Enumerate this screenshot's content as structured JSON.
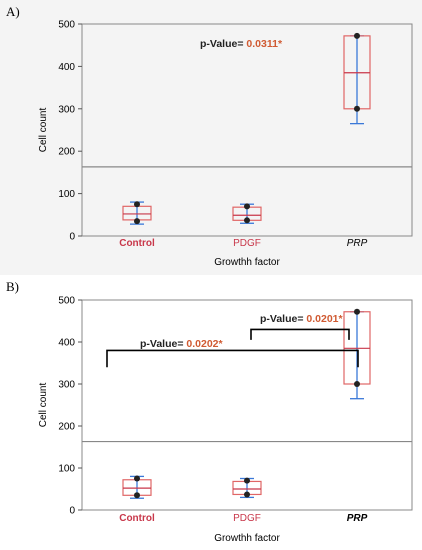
{
  "chart_data": [
    {
      "panel_label": "A)",
      "type": "box",
      "xlabel": "Growthh factor",
      "ylabel": "Cell count",
      "ylim": [
        0,
        500
      ],
      "yticks": [
        0,
        100,
        200,
        300,
        400,
        500
      ],
      "categories": [
        "Control",
        "PDGF",
        "PRP"
      ],
      "category_colors": [
        "#c8374a",
        "#c8374a",
        "#000000"
      ],
      "category_bold": [
        true,
        false,
        false
      ],
      "category_italic": [
        false,
        false,
        true
      ],
      "boxes": [
        {
          "category": "Control",
          "q1": 38,
          "median": 52,
          "q3": 70,
          "whisker_low": 28,
          "whisker_high": 80,
          "points": [
            75,
            35
          ]
        },
        {
          "category": "PDGF",
          "q1": 37,
          "median": 49,
          "q3": 68,
          "whisker_low": 30,
          "whisker_high": 75,
          "points": [
            70,
            37
          ]
        },
        {
          "category": "PRP",
          "q1": 300,
          "median": 385,
          "q3": 472,
          "whisker_low": 265,
          "whisker_high": 472,
          "points": [
            472,
            300
          ]
        }
      ],
      "reference_line": 163,
      "annotations": [
        {
          "prefix": "p-Value= ",
          "value": "0.0311*",
          "color": "#d05a32"
        }
      ]
    },
    {
      "panel_label": "B)",
      "type": "box",
      "xlabel": "Growthh factor",
      "ylabel": "Cell count",
      "ylim": [
        0,
        500
      ],
      "yticks": [
        0,
        100,
        200,
        300,
        400,
        500
      ],
      "categories": [
        "Control",
        "PDGF",
        "PRP"
      ],
      "category_colors": [
        "#c8374a",
        "#c8374a",
        "#000000"
      ],
      "category_bold": [
        true,
        false,
        true
      ],
      "category_italic": [
        false,
        false,
        true
      ],
      "boxes": [
        {
          "category": "Control",
          "q1": 35,
          "median": 52,
          "q3": 72,
          "whisker_low": 28,
          "whisker_high": 80,
          "points": [
            75,
            35
          ]
        },
        {
          "category": "PDGF",
          "q1": 37,
          "median": 50,
          "q3": 68,
          "whisker_low": 30,
          "whisker_high": 75,
          "points": [
            70,
            37
          ]
        },
        {
          "category": "PRP",
          "q1": 300,
          "median": 385,
          "q3": 472,
          "whisker_low": 265,
          "whisker_high": 472,
          "points": [
            472,
            300
          ]
        }
      ],
      "reference_line": 163,
      "annotations": [
        {
          "prefix": "p-Value= ",
          "value": "0.0202*",
          "color": "#d05a32"
        },
        {
          "prefix": "p-Value= ",
          "value": "0.0201*",
          "color": "#d05a32"
        }
      ]
    }
  ],
  "colors": {
    "box_stroke": "#e06666",
    "median": "#c8374a",
    "whisker": "#3a78d8",
    "point": "#222222",
    "frame": "#888888",
    "refline": "#888888"
  }
}
